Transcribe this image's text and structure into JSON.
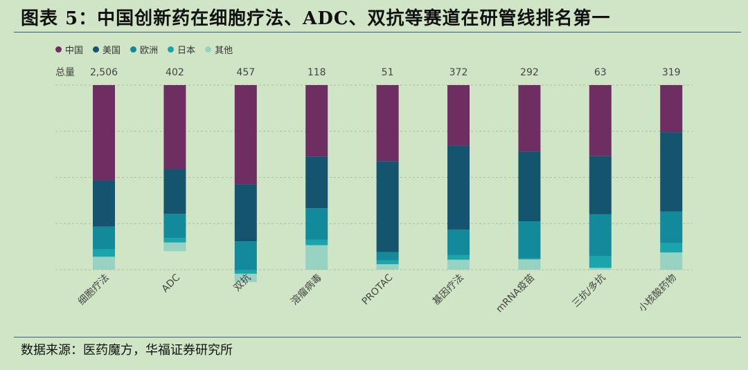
{
  "title": "图表 5：中国创新药在细胞疗法、ADC、双抗等赛道在研管线排名第一",
  "source": "数据来源：医药魔方，华福证券研究所",
  "colors": {
    "china": "#6e2e62",
    "usa": "#15546f",
    "europe": "#138a9b",
    "japan": "#1aa5ad",
    "other": "#98d2c2",
    "grid": "#a9c3a0",
    "text": "#444444"
  },
  "chart_data": {
    "type": "bar",
    "stacked": true,
    "normalized": true,
    "total_label": "总量",
    "categories": [
      "细胞疗法",
      "ADC",
      "双抗",
      "溶瘤病毒",
      "PROTAC",
      "基因疗法",
      "mRNA疫苗",
      "三抗/多抗",
      "小核酸药物"
    ],
    "totals": [
      "2,506",
      "402",
      "457",
      "118",
      "51",
      "372",
      "292",
      "63",
      "319"
    ],
    "series": [
      {
        "name": "中国",
        "values": [
          0.517,
          0.455,
          0.537,
          0.387,
          0.413,
          0.328,
          0.36,
          0.385,
          0.255
        ]
      },
      {
        "name": "美国",
        "values": [
          0.25,
          0.243,
          0.31,
          0.28,
          0.492,
          0.455,
          0.378,
          0.315,
          0.43
        ]
      },
      {
        "name": "欧洲",
        "values": [
          0.123,
          0.13,
          0.155,
          0.17,
          0.045,
          0.138,
          0.2,
          0.225,
          0.172
        ]
      },
      {
        "name": "日本",
        "values": [
          0.04,
          0.025,
          0.02,
          0.03,
          0.02,
          0.025,
          0.006,
          0.065,
          0.05
        ]
      },
      {
        "name": "其他",
        "values": [
          0.07,
          0.047,
          0.045,
          0.133,
          0.03,
          0.054,
          0.056,
          0.01,
          0.093
        ]
      }
    ],
    "ylim": [
      0,
      1
    ],
    "grid": true,
    "legend_position": "top-left"
  }
}
